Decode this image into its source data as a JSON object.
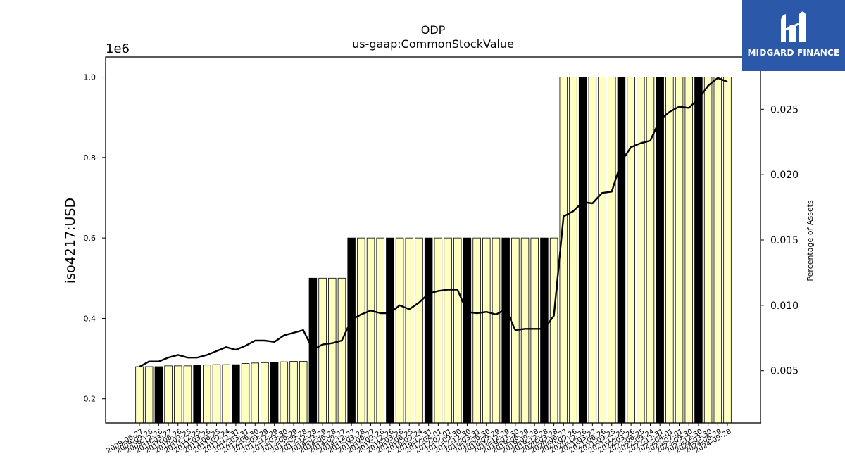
{
  "chart_data": {
    "type": "bar",
    "title": "ODP",
    "subtitle": "us-gaap:CommonStockValue",
    "ylabel": "iso4217:USD",
    "y_offset_label": "1e6",
    "y2label": "Percentage of Assets",
    "ylim": [
      140000,
      1050000
    ],
    "y2lim": [
      0.001,
      0.029
    ],
    "yticks": [
      "0.2",
      "0.4",
      "0.6",
      "0.8",
      "1.0"
    ],
    "y2ticks": [
      "0.005",
      "0.010",
      "0.015",
      "0.020",
      "0.025"
    ],
    "bar_fill": "#ffffc0",
    "bar_fill_highlight": "#000000",
    "line_color": "#000000",
    "categories": [
      "2009-06-27",
      "2009-09-26",
      "2009-12-26",
      "2010-03-27",
      "2010-06-26",
      "2010-09-25",
      "2010-12-25",
      "2011-03-26",
      "2011-06-25",
      "2011-09-24",
      "2011-12-31",
      "2012-03-31",
      "2012-06-30",
      "2012-09-29",
      "2012-12-29",
      "2013-03-30",
      "2013-06-29",
      "2013-09-28",
      "2013-12-28",
      "2014-03-29",
      "2014-06-28",
      "2014-09-27",
      "2014-12-27",
      "2015-03-28",
      "2015-06-27",
      "2015-09-26",
      "2015-12-26",
      "2016-03-26",
      "2016-06-25",
      "2016-09-24",
      "2016-12-31",
      "2017-04-01",
      "2017-07-01",
      "2017-09-30",
      "2017-12-30",
      "2018-03-31",
      "2018-06-30",
      "2018-09-29",
      "2018-12-29",
      "2019-03-30",
      "2019-06-29",
      "2019-09-28",
      "2019-12-28",
      "2020-03-28",
      "2020-06-27",
      "2020-09-26",
      "2020-12-26",
      "2021-03-27",
      "2021-06-26",
      "2021-09-25",
      "2021-12-25",
      "2022-03-26",
      "2022-06-25",
      "2022-09-24",
      "2022-12-31",
      "2023-04-01",
      "2023-07-01",
      "2023-09-30",
      "2023-12-30",
      "2024-03-30",
      "2024-06-29",
      "2024-09-28"
    ],
    "values": [
      280000,
      280000,
      280000,
      282000,
      282000,
      282000,
      283000,
      284000,
      285000,
      285000,
      285000,
      288000,
      289000,
      290000,
      290000,
      292000,
      293000,
      293000,
      500000,
      500000,
      500000,
      500000,
      600000,
      600000,
      600000,
      600000,
      600000,
      600000,
      600000,
      600000,
      600000,
      600000,
      600000,
      600000,
      600000,
      600000,
      600000,
      600000,
      600000,
      600000,
      600000,
      600000,
      600000,
      600000,
      1000000,
      1000000,
      1000000,
      1000000,
      1000000,
      1000000,
      1000000,
      1000000,
      1000000,
      1000000,
      1000000,
      1000000,
      1000000,
      1000000,
      1000000,
      1000000,
      1000000,
      1000000
    ],
    "highlight": [
      false,
      false,
      true,
      false,
      false,
      false,
      true,
      false,
      false,
      false,
      true,
      false,
      false,
      false,
      true,
      false,
      false,
      false,
      true,
      false,
      false,
      false,
      true,
      false,
      false,
      false,
      true,
      false,
      false,
      false,
      true,
      false,
      false,
      false,
      true,
      false,
      false,
      false,
      true,
      false,
      false,
      false,
      true,
      false,
      false,
      false,
      true,
      false,
      false,
      false,
      true,
      false,
      false,
      false,
      true,
      false,
      false,
      false,
      true,
      false,
      false,
      false
    ],
    "pct_series": {
      "name": "Percentage of Assets",
      "values": [
        0.0053,
        0.0057,
        0.0057,
        0.006,
        0.0062,
        0.006,
        0.006,
        0.0062,
        0.0065,
        0.0068,
        0.0066,
        0.0069,
        0.0073,
        0.0073,
        0.0072,
        0.0077,
        0.0079,
        0.0081,
        0.0066,
        0.007,
        0.0071,
        0.0073,
        0.0089,
        0.0093,
        0.0096,
        0.0094,
        0.0094,
        0.01,
        0.0097,
        0.0102,
        0.0109,
        0.0111,
        0.0112,
        0.0112,
        0.0095,
        0.0094,
        0.0095,
        0.0093,
        0.0097,
        0.0081,
        0.0082,
        0.0082,
        0.0082,
        0.0092,
        0.0168,
        0.0172,
        0.0179,
        0.0178,
        0.0186,
        0.0187,
        0.021,
        0.0221,
        0.0224,
        0.0226,
        0.0242,
        0.0248,
        0.0252,
        0.0251,
        0.0258,
        0.0268,
        0.0274,
        0.0271
      ]
    }
  },
  "logo": {
    "brand_text": "MIDGARD FINANCE"
  }
}
